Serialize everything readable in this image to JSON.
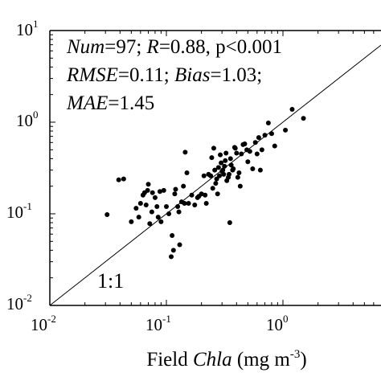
{
  "chart_data": {
    "type": "scatter",
    "x_scale": "log",
    "y_scale": "log",
    "xlim": [
      0.01,
      10
    ],
    "ylim": [
      0.01,
      10
    ],
    "grid": false,
    "xlabel": {
      "prefix": "Field ",
      "italic": "Chla",
      "unit_base": " (mg m",
      "unit_exp": "-3",
      "unit_end": ")"
    },
    "ylabel": "",
    "x_ticks": [
      {
        "base": "10",
        "exp": "-2"
      },
      {
        "base": "10",
        "exp": "-1"
      },
      {
        "base": "10",
        "exp": "0"
      }
    ],
    "y_ticks": [
      {
        "base": "10",
        "exp": "-2"
      },
      {
        "base": "10",
        "exp": "-1"
      },
      {
        "base": "10",
        "exp": "0"
      },
      {
        "base": "10",
        "exp": "1"
      }
    ],
    "reference_line_label": "1:1",
    "stats": {
      "line1": {
        "n_label": "Num",
        "n_value": "=97; ",
        "r_label": "R",
        "r_value": "=0.88, p<0.001"
      },
      "line2": {
        "rmse_label": "RMSE",
        "rmse_value": "=0.11; ",
        "bias_label": "Bias",
        "bias_value": "=1.03;"
      },
      "line3": {
        "mae_label": "MAE",
        "mae_value": "=1.45"
      }
    },
    "points": [
      [
        0.031,
        0.098
      ],
      [
        0.039,
        0.235
      ],
      [
        0.043,
        0.24
      ],
      [
        0.05,
        0.082
      ],
      [
        0.055,
        0.115
      ],
      [
        0.058,
        0.092
      ],
      [
        0.06,
        0.13
      ],
      [
        0.063,
        0.16
      ],
      [
        0.065,
        0.17
      ],
      [
        0.067,
        0.125
      ],
      [
        0.069,
        0.18
      ],
      [
        0.07,
        0.21
      ],
      [
        0.072,
        0.078
      ],
      [
        0.075,
        0.105
      ],
      [
        0.076,
        0.17
      ],
      [
        0.08,
        0.15
      ],
      [
        0.083,
        0.12
      ],
      [
        0.085,
        0.092
      ],
      [
        0.088,
        0.175
      ],
      [
        0.09,
        0.082
      ],
      [
        0.095,
        0.18
      ],
      [
        0.1,
        0.12
      ],
      [
        0.105,
        0.1
      ],
      [
        0.11,
        0.034
      ],
      [
        0.112,
        0.058
      ],
      [
        0.115,
        0.04
      ],
      [
        0.118,
        0.165
      ],
      [
        0.12,
        0.185
      ],
      [
        0.125,
        0.12
      ],
      [
        0.128,
        0.105
      ],
      [
        0.13,
        0.046
      ],
      [
        0.135,
        0.135
      ],
      [
        0.14,
        0.2
      ],
      [
        0.143,
        0.13
      ],
      [
        0.145,
        0.47
      ],
      [
        0.15,
        0.28
      ],
      [
        0.155,
        0.13
      ],
      [
        0.165,
        0.16
      ],
      [
        0.175,
        0.125
      ],
      [
        0.185,
        0.15
      ],
      [
        0.19,
        0.155
      ],
      [
        0.2,
        0.165
      ],
      [
        0.21,
        0.26
      ],
      [
        0.215,
        0.16
      ],
      [
        0.22,
        0.13
      ],
      [
        0.23,
        0.27
      ],
      [
        0.24,
        0.26
      ],
      [
        0.245,
        0.41
      ],
      [
        0.25,
        0.19
      ],
      [
        0.255,
        0.52
      ],
      [
        0.26,
        0.3
      ],
      [
        0.265,
        0.215
      ],
      [
        0.27,
        0.24
      ],
      [
        0.275,
        0.165
      ],
      [
        0.28,
        0.32
      ],
      [
        0.285,
        0.26
      ],
      [
        0.29,
        0.44
      ],
      [
        0.295,
        0.36
      ],
      [
        0.3,
        0.29
      ],
      [
        0.305,
        0.3
      ],
      [
        0.31,
        0.27
      ],
      [
        0.315,
        0.33
      ],
      [
        0.32,
        0.38
      ],
      [
        0.325,
        0.46
      ],
      [
        0.33,
        0.23
      ],
      [
        0.34,
        0.25
      ],
      [
        0.345,
        0.27
      ],
      [
        0.35,
        0.08
      ],
      [
        0.355,
        0.4
      ],
      [
        0.36,
        0.34
      ],
      [
        0.37,
        0.3
      ],
      [
        0.375,
        0.31
      ],
      [
        0.385,
        0.53
      ],
      [
        0.39,
        0.52
      ],
      [
        0.4,
        0.46
      ],
      [
        0.41,
        0.25
      ],
      [
        0.42,
        0.28
      ],
      [
        0.43,
        0.2
      ],
      [
        0.44,
        0.45
      ],
      [
        0.455,
        0.57
      ],
      [
        0.47,
        0.58
      ],
      [
        0.49,
        0.5
      ],
      [
        0.5,
        0.37
      ],
      [
        0.52,
        0.48
      ],
      [
        0.55,
        0.31
      ],
      [
        0.58,
        0.6
      ],
      [
        0.6,
        0.45
      ],
      [
        0.62,
        0.68
      ],
      [
        0.64,
        0.3
      ],
      [
        0.66,
        0.5
      ],
      [
        0.7,
        0.72
      ],
      [
        0.75,
        0.98
      ],
      [
        0.8,
        0.75
      ],
      [
        0.85,
        0.55
      ],
      [
        1.05,
        0.82
      ],
      [
        1.2,
        1.38
      ],
      [
        1.5,
        1.1
      ]
    ]
  }
}
